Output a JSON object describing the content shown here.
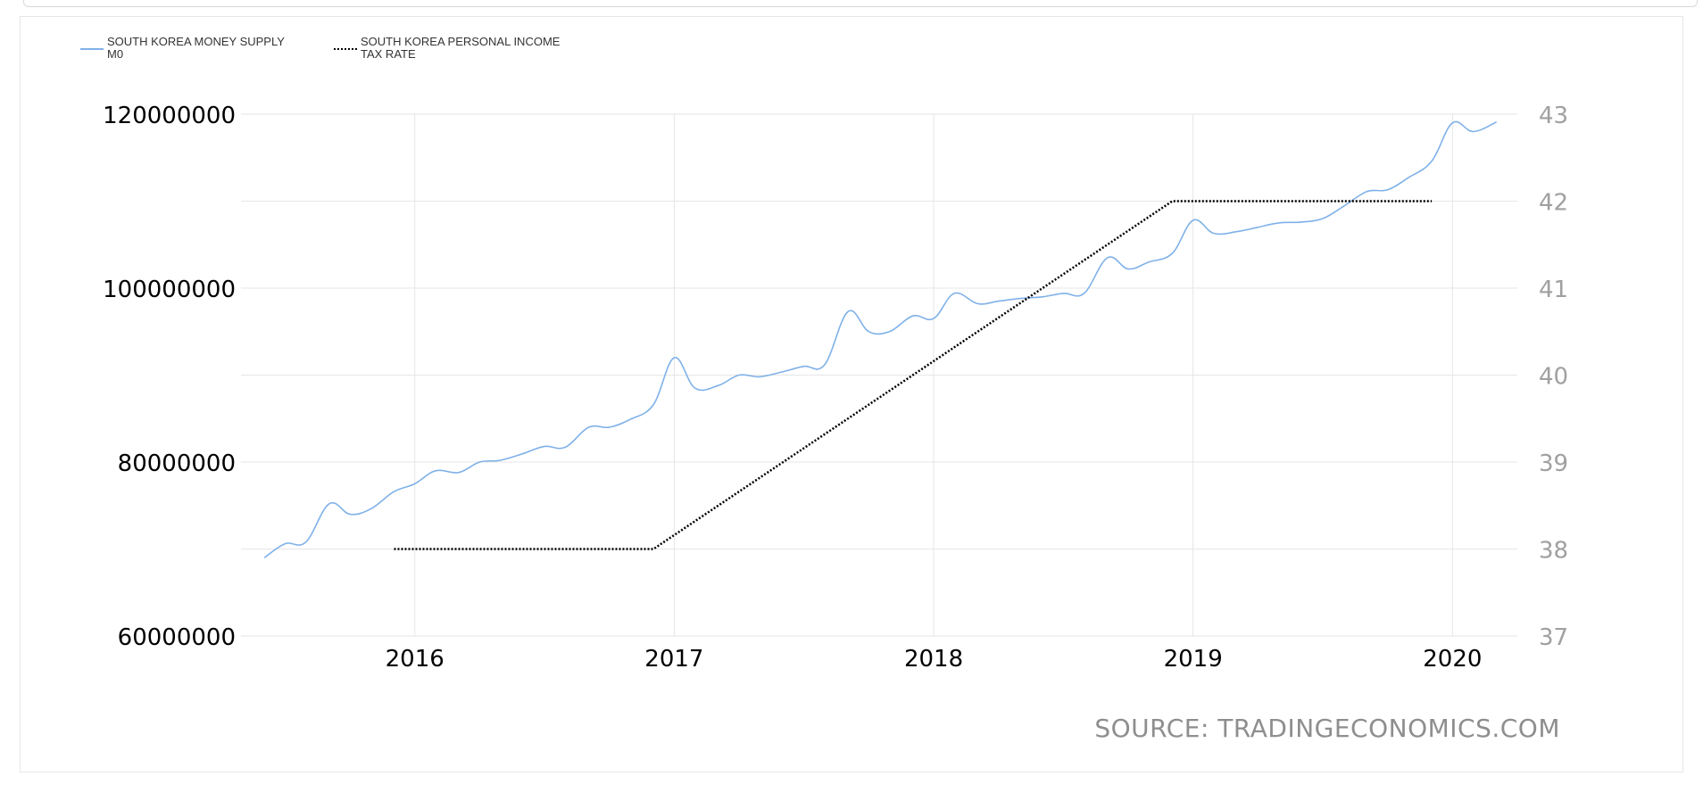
{
  "legend": [
    {
      "label": "SOUTH KOREA MONEY SUPPLY\nM0",
      "style": "solid",
      "color": "#7fb1e8"
    },
    {
      "label": "SOUTH KOREA PERSONAL INCOME\nTAX RATE",
      "style": "dotted",
      "color": "#000000"
    }
  ],
  "source": "SOURCE: TRADINGECONOMICS.COM",
  "chart_data": {
    "type": "line",
    "title": "",
    "xlabel": "",
    "ylabel": "",
    "grid": true,
    "legend_position": "top-left",
    "x_ticks": [
      "2016",
      "2017",
      "2018",
      "2019",
      "2020"
    ],
    "y_left": {
      "ticks": [
        "60000000",
        "80000000",
        "100000000",
        "120000000"
      ],
      "range": [
        60000000,
        120000000
      ]
    },
    "y_right": {
      "ticks": [
        "37",
        "38",
        "39",
        "40",
        "41",
        "42",
        "43"
      ],
      "range": [
        37,
        43
      ]
    },
    "x_range": [
      2015.33,
      2020.25
    ],
    "series": [
      {
        "name": "SOUTH KOREA MONEY SUPPLY M0",
        "axis": "left",
        "color": "#7fb1e8",
        "x": [
          2015.42,
          2015.5,
          2015.58,
          2015.67,
          2015.75,
          2015.83,
          2015.92,
          2016.0,
          2016.08,
          2016.17,
          2016.25,
          2016.33,
          2016.42,
          2016.5,
          2016.58,
          2016.67,
          2016.75,
          2016.83,
          2016.92,
          2017.0,
          2017.08,
          2017.17,
          2017.25,
          2017.33,
          2017.42,
          2017.5,
          2017.58,
          2017.67,
          2017.75,
          2017.83,
          2017.92,
          2018.0,
          2018.08,
          2018.17,
          2018.25,
          2018.33,
          2018.42,
          2018.5,
          2018.58,
          2018.67,
          2018.75,
          2018.83,
          2018.92,
          2019.0,
          2019.08,
          2019.17,
          2019.25,
          2019.33,
          2019.42,
          2019.5,
          2019.58,
          2019.67,
          2019.75,
          2019.83,
          2019.92,
          2020.0,
          2020.08,
          2020.17
        ],
        "y": [
          69000000,
          70600000,
          70800000,
          75200000,
          74000000,
          74600000,
          76600000,
          77500000,
          79000000,
          78800000,
          80000000,
          80200000,
          81000000,
          81800000,
          81700000,
          84000000,
          84000000,
          84900000,
          86600000,
          92000000,
          88500000,
          88800000,
          90000000,
          89800000,
          90400000,
          91000000,
          91200000,
          97300000,
          95000000,
          95000000,
          96800000,
          96500000,
          99400000,
          98200000,
          98500000,
          98800000,
          99000000,
          99400000,
          99400000,
          103500000,
          102200000,
          103000000,
          104000000,
          107800000,
          106300000,
          106500000,
          107000000,
          107500000,
          107600000,
          108000000,
          109400000,
          111100000,
          111300000,
          112700000,
          114600000,
          119000000,
          118000000,
          119100000
        ]
      },
      {
        "name": "SOUTH KOREA PERSONAL INCOME TAX RATE",
        "axis": "right",
        "color": "#000000",
        "style": "dotted",
        "x": [
          2015.92,
          2016.92,
          2018.92,
          2019.92
        ],
        "y": [
          38,
          38,
          42,
          42
        ]
      }
    ]
  }
}
